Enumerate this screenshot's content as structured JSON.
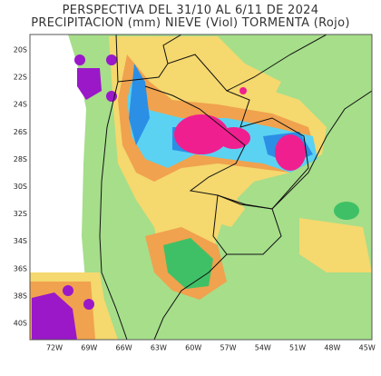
{
  "title": [
    "PERSPECTIVA DEL 31/10 AL 6/11 DE 2024",
    "PRECIPITACION (mm) NIEVE (Viol) TORMENTA (Rojo)"
  ],
  "lat_labels": [
    "20S",
    "22S",
    "24S",
    "26S",
    "28S",
    "30S",
    "32S",
    "34S",
    "36S",
    "38S",
    "40S"
  ],
  "lon_labels": [
    "72W",
    "69W",
    "66W",
    "63W",
    "60W",
    "57W",
    "54W",
    "51W",
    "48W",
    "45W"
  ]
}
